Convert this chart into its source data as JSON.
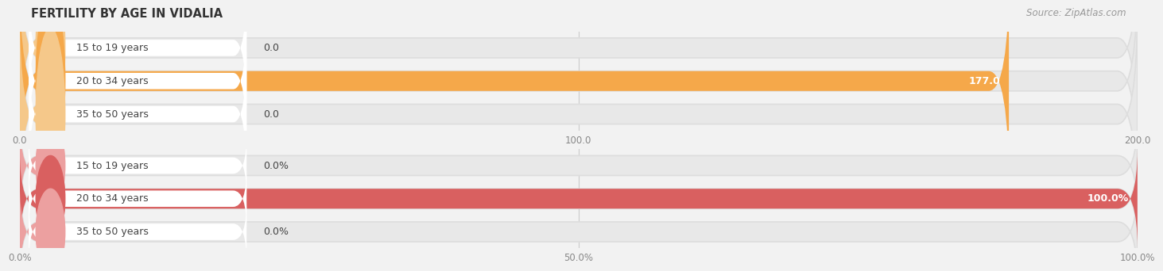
{
  "title": "FERTILITY BY AGE IN VIDALIA",
  "source": "Source: ZipAtlas.com",
  "top_chart": {
    "categories": [
      "15 to 19 years",
      "20 to 34 years",
      "35 to 50 years"
    ],
    "values": [
      0.0,
      177.0,
      0.0
    ],
    "xlim": [
      0,
      200
    ],
    "xticks": [
      0.0,
      100.0,
      200.0
    ],
    "xtick_labels": [
      "0.0",
      "100.0",
      "200.0"
    ],
    "bar_color_main": "#F5A84A",
    "bar_color_light": "#F5C88A",
    "bar_bg_color": "#E8E8E8",
    "value_labels": [
      "0.0",
      "177.0",
      "0.0"
    ]
  },
  "bottom_chart": {
    "categories": [
      "15 to 19 years",
      "20 to 34 years",
      "35 to 50 years"
    ],
    "values": [
      0.0,
      100.0,
      0.0
    ],
    "xlim": [
      0,
      100
    ],
    "xticks": [
      0.0,
      50.0,
      100.0
    ],
    "xtick_labels": [
      "0.0%",
      "50.0%",
      "100.0%"
    ],
    "bar_color_main": "#D96060",
    "bar_color_light": "#ECA0A0",
    "bar_bg_color": "#E8E8E8",
    "value_labels": [
      "0.0%",
      "100.0%",
      "0.0%"
    ]
  },
  "label_text_color": "#444444",
  "title_color": "#333333",
  "source_color": "#999999",
  "bar_height": 0.6,
  "background_color": "#F2F2F2",
  "grid_color": "#CCCCCC"
}
